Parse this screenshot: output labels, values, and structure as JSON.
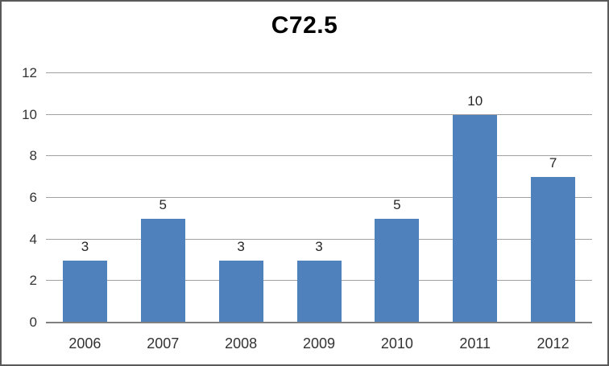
{
  "chart_data": {
    "type": "bar",
    "title": "C72.5",
    "categories": [
      "2006",
      "2007",
      "2008",
      "2009",
      "2010",
      "2011",
      "2012"
    ],
    "values": [
      3,
      5,
      3,
      3,
      5,
      10,
      7
    ],
    "xlabel": "",
    "ylabel": "",
    "ylim": [
      0,
      12
    ],
    "ytick_step": 2,
    "yticks": [
      0,
      2,
      4,
      6,
      8,
      10,
      12
    ],
    "grid": true,
    "legend": false,
    "colors": {
      "bar_fill": "#4F81BD",
      "gridline": "#A0A0A0",
      "zero_axis_line": "#808080",
      "tick_label": "#333333",
      "value_label": "#262626",
      "title": "#000000",
      "border": "#595959",
      "background": "#FFFFFF"
    }
  }
}
